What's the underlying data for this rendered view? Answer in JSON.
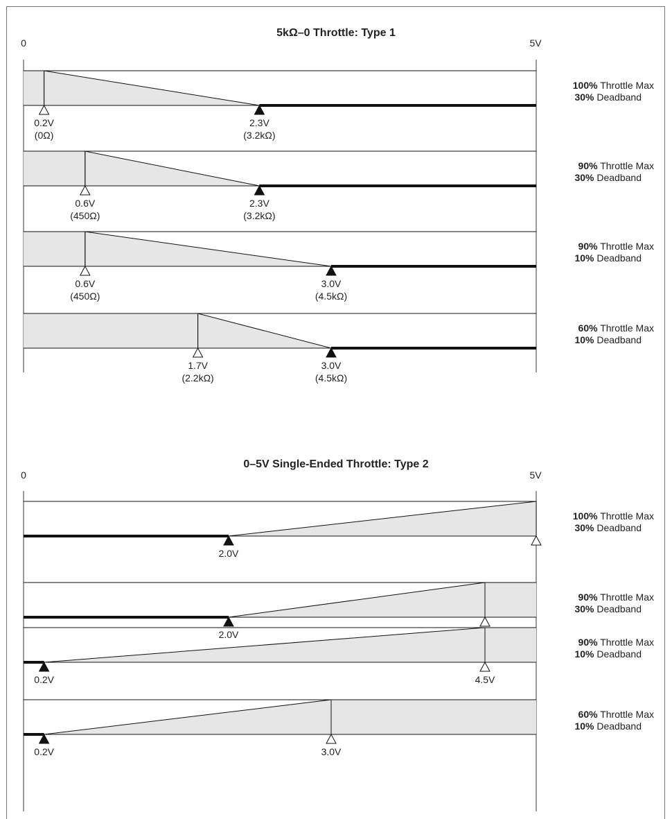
{
  "sections": [
    {
      "id": "type1",
      "title": "5kΩ–0 Throttle:  Type 1",
      "axis_start_label": "0",
      "axis_end_label": "5V",
      "direction": "decreasing",
      "rows": [
        {
          "max_pct": "100%",
          "max_text": " Throttle Max",
          "db_pct": "30%",
          "db_text": " Deadband",
          "open_marker": {
            "v": 0.2,
            "label": "0.2V",
            "sub": "(0Ω)"
          },
          "filled_marker": {
            "v": 2.3,
            "label": "2.3V",
            "sub": "(3.2kΩ)"
          }
        },
        {
          "max_pct": "90%",
          "max_text": " Throttle Max",
          "db_pct": "30%",
          "db_text": " Deadband",
          "open_marker": {
            "v": 0.6,
            "label": "0.6V",
            "sub": "(450Ω)"
          },
          "filled_marker": {
            "v": 2.3,
            "label": "2.3V",
            "sub": "(3.2kΩ)"
          }
        },
        {
          "max_pct": "90%",
          "max_text": " Throttle Max",
          "db_pct": "10%",
          "db_text": " Deadband",
          "open_marker": {
            "v": 0.6,
            "label": "0.6V",
            "sub": "(450Ω)"
          },
          "filled_marker": {
            "v": 3.0,
            "label": "3.0V",
            "sub": "(4.5kΩ)"
          }
        },
        {
          "max_pct": "60%",
          "max_text": " Throttle Max",
          "db_pct": "10%",
          "db_text": " Deadband",
          "open_marker": {
            "v": 1.7,
            "label": "1.7V",
            "sub": "(2.2kΩ)"
          },
          "filled_marker": {
            "v": 3.0,
            "label": "3.0V",
            "sub": "(4.5kΩ)"
          }
        }
      ]
    },
    {
      "id": "type2",
      "title": "0–5V Single-Ended Throttle:  Type 2",
      "axis_start_label": "0",
      "axis_end_label": "5V",
      "direction": "increasing",
      "rows": [
        {
          "max_pct": "100%",
          "max_text": " Throttle Max",
          "db_pct": "30%",
          "db_text": " Deadband",
          "filled_marker": {
            "v": 2.0,
            "label": "2.0V"
          },
          "open_marker": {
            "v": 5.0,
            "label": ""
          }
        },
        {
          "max_pct": "90%",
          "max_text": " Throttle Max",
          "db_pct": "30%",
          "db_text": " Deadband",
          "filled_marker": {
            "v": 2.0,
            "label": "2.0V"
          },
          "open_marker": {
            "v": 4.5,
            "label": "4.5V"
          }
        },
        {
          "max_pct": "90%",
          "max_text": " Throttle Max",
          "db_pct": "10%",
          "db_text": " Deadband",
          "filled_marker": {
            "v": 0.2,
            "label": "0.2V"
          },
          "open_marker": {
            "v": 4.5,
            "label": "4.5V"
          }
        },
        {
          "max_pct": "60%",
          "max_text": " Throttle Max",
          "db_pct": "10%",
          "db_text": " Deadband",
          "filled_marker": {
            "v": 0.2,
            "label": "0.2V"
          },
          "open_marker": {
            "v": 3.0,
            "label": "3.0V"
          }
        }
      ]
    }
  ],
  "colors": {
    "shade": "#e6e6e6",
    "line": "#111111",
    "frame": "#555555"
  }
}
